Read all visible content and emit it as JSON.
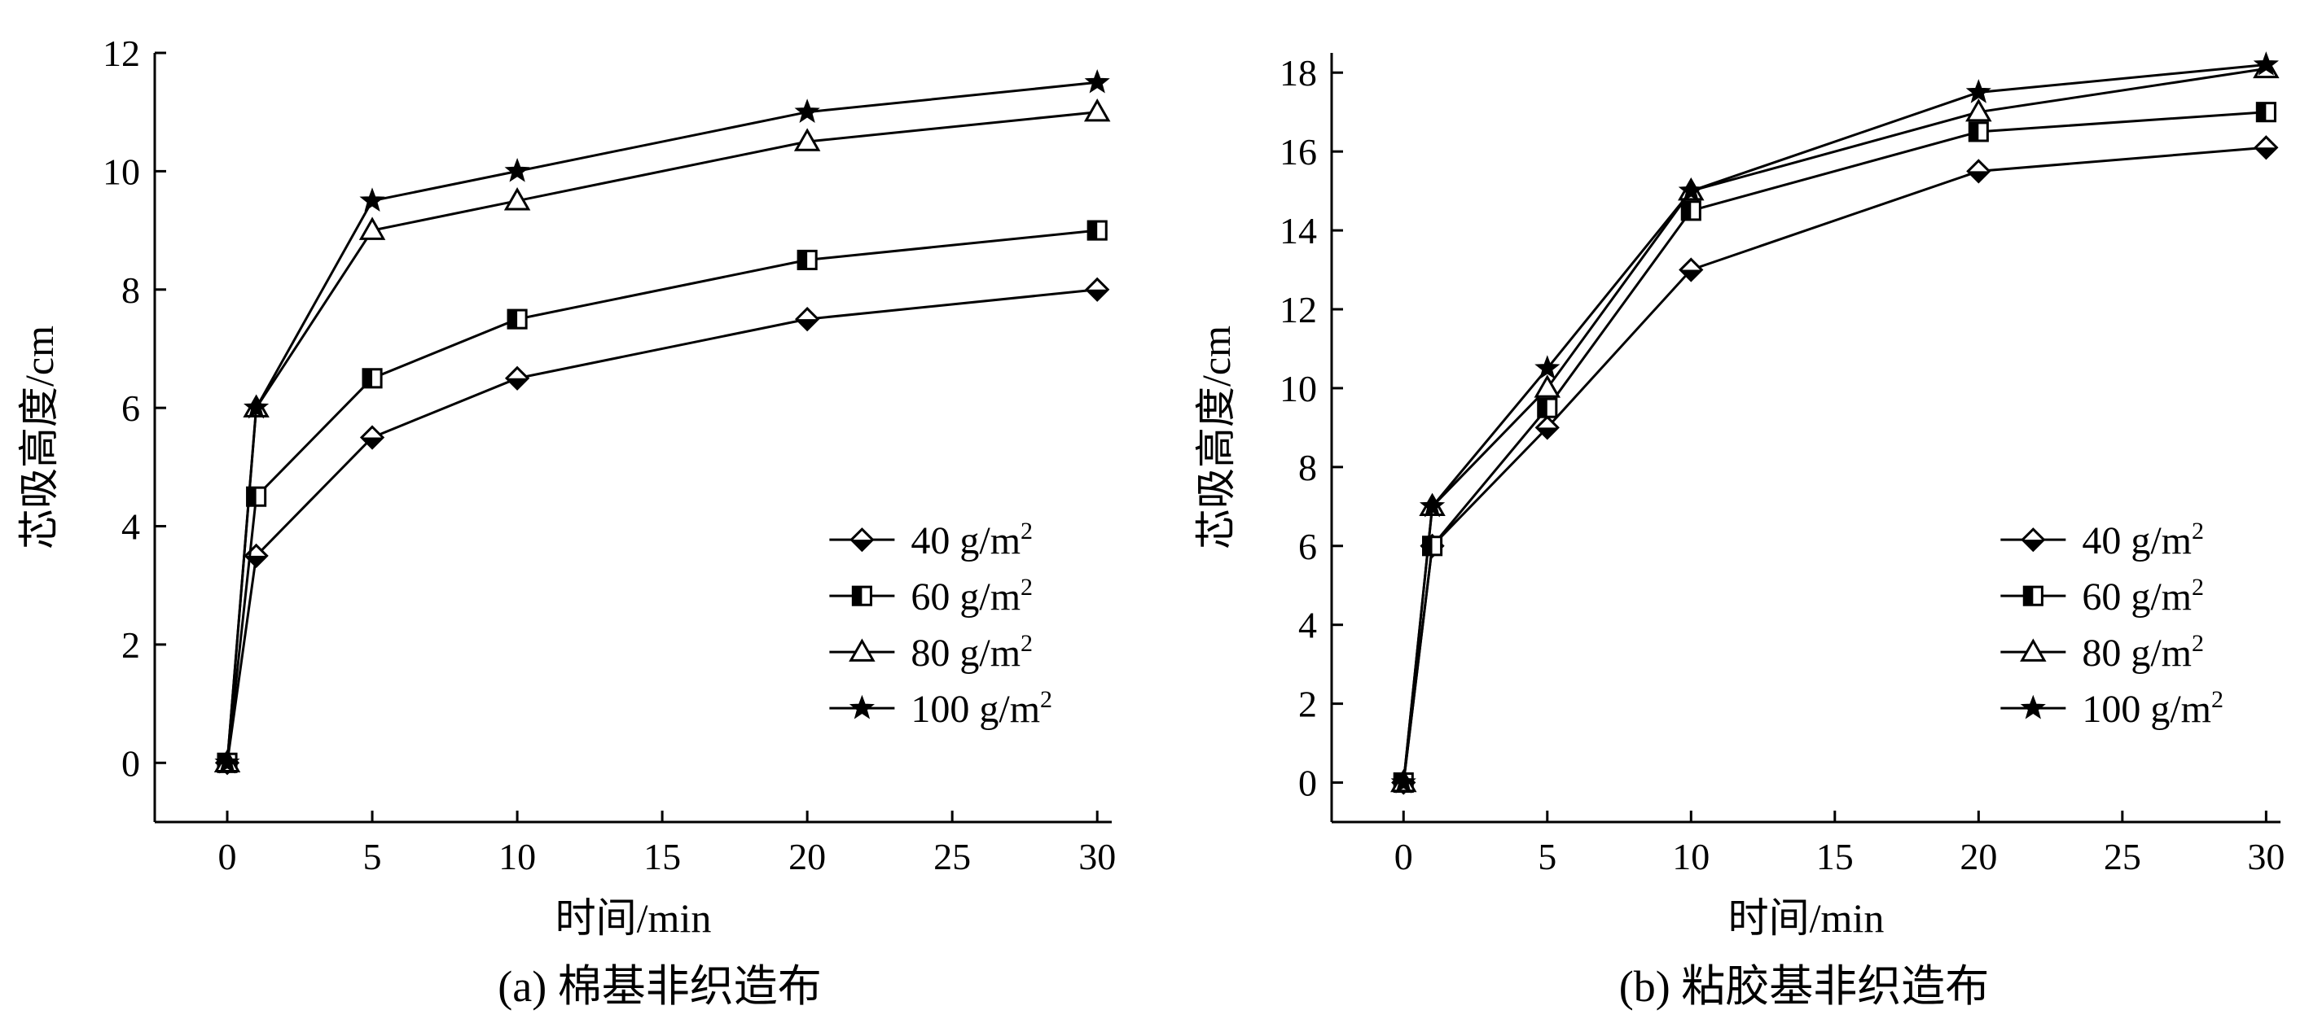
{
  "chart_data": [
    {
      "id": "a",
      "type": "line",
      "caption": "(a) 棉基非织造布",
      "xlabel": "时间/min",
      "ylabel": "芯吸高度/cm",
      "xlim": [
        -2.5,
        30.5
      ],
      "ylim": [
        -1,
        12
      ],
      "xticks": [
        0,
        5,
        10,
        15,
        20,
        25,
        30
      ],
      "yticks": [
        0,
        2,
        4,
        6,
        8,
        10,
        12
      ],
      "x": [
        0,
        1,
        5,
        10,
        20,
        30
      ],
      "legend_position": "lower-right",
      "series": [
        {
          "name": "40 g/m",
          "sup": "2",
          "marker": "diamond",
          "values": [
            0,
            3.5,
            5.5,
            6.5,
            7.5,
            8.0
          ]
        },
        {
          "name": "60 g/m",
          "sup": "2",
          "marker": "square",
          "values": [
            0,
            4.5,
            6.5,
            7.5,
            8.5,
            9.0
          ]
        },
        {
          "name": "80 g/m",
          "sup": "2",
          "marker": "triangle",
          "values": [
            0,
            6.0,
            9.0,
            9.5,
            10.5,
            11.0
          ]
        },
        {
          "name": "100 g/m",
          "sup": "2",
          "marker": "star",
          "values": [
            0,
            6.0,
            9.5,
            10.0,
            11.0,
            11.5
          ]
        }
      ]
    },
    {
      "id": "b",
      "type": "line",
      "caption": "(b) 粘胶基非织造布",
      "xlabel": "时间/min",
      "ylabel": "芯吸高度/cm",
      "xlim": [
        -2.5,
        30.5
      ],
      "ylim": [
        -1,
        18.5
      ],
      "xticks": [
        0,
        5,
        10,
        15,
        20,
        25,
        30
      ],
      "yticks": [
        0,
        2,
        4,
        6,
        8,
        10,
        12,
        14,
        16,
        18
      ],
      "x": [
        0,
        1,
        5,
        10,
        20,
        30
      ],
      "legend_position": "lower-right",
      "series": [
        {
          "name": "40 g/m",
          "sup": "2",
          "marker": "diamond",
          "values": [
            0,
            6.0,
            9.0,
            13.0,
            15.5,
            16.1
          ]
        },
        {
          "name": "60 g/m",
          "sup": "2",
          "marker": "square",
          "values": [
            0,
            6.0,
            9.5,
            14.5,
            16.5,
            17.0
          ]
        },
        {
          "name": "80 g/m",
          "sup": "2",
          "marker": "triangle",
          "values": [
            0,
            7.0,
            10.0,
            15.0,
            17.0,
            18.1
          ]
        },
        {
          "name": "100 g/m",
          "sup": "2",
          "marker": "star",
          "values": [
            0,
            7.0,
            10.5,
            15.0,
            17.5,
            18.2
          ]
        }
      ]
    }
  ]
}
